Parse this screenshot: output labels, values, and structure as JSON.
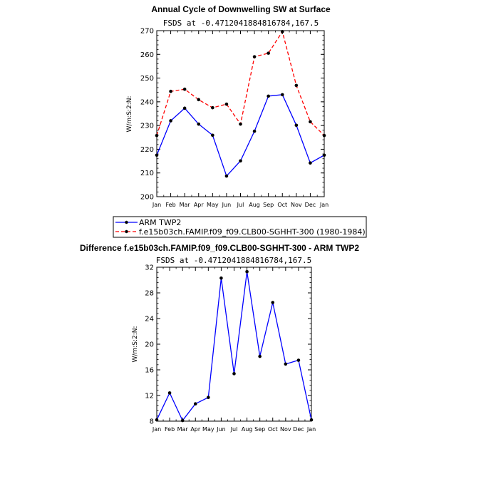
{
  "chart_data": [
    {
      "type": "line",
      "title": "Annual Cycle of Downwelling SW at Surface",
      "subtitle": "FSDS at -0.4712041884816784,167.5",
      "ylabel": "W/m:S:2:N:",
      "xlabel": "",
      "categories": [
        "Jan",
        "Feb",
        "Mar",
        "Apr",
        "May",
        "Jun",
        "Jul",
        "Aug",
        "Sep",
        "Oct",
        "Nov",
        "Dec",
        "Jan"
      ],
      "ylim": [
        200,
        270
      ],
      "yticks": [
        200,
        210,
        220,
        230,
        240,
        250,
        260,
        270
      ],
      "series": [
        {
          "name": "ARM TWP2",
          "color": "#0000ff",
          "dash": "solid",
          "values": [
            217.5,
            232.0,
            237.3,
            230.6,
            225.9,
            208.7,
            215.1,
            227.6,
            242.4,
            243.0,
            230.1,
            214.2,
            217.5
          ]
        },
        {
          "name": "f.e15b03ch.FAMIP.f09_f09.CLB00-SGHHT-300 (1980-1984)",
          "color": "#ff0000",
          "dash": "dashed",
          "values": [
            225.8,
            244.4,
            245.3,
            240.9,
            237.5,
            239.0,
            230.6,
            259.0,
            260.5,
            269.6,
            246.9,
            231.6,
            225.8
          ]
        }
      ],
      "legend": "below"
    },
    {
      "type": "line",
      "title": "Difference f.e15b03ch.FAMIP.f09_f09.CLB00-SGHHT-300 - ARM TWP2",
      "subtitle": "FSDS at -0.4712041884816784,167.5",
      "ylabel": "W/m:S:2:N:",
      "xlabel": "",
      "categories": [
        "Jan",
        "Feb",
        "Mar",
        "Apr",
        "May",
        "Jun",
        "Jul",
        "Aug",
        "Sep",
        "Oct",
        "Nov",
        "Dec",
        "Jan"
      ],
      "ylim": [
        8,
        32
      ],
      "yticks": [
        8,
        12,
        16,
        20,
        24,
        28,
        32
      ],
      "series": [
        {
          "color": "#0000ff",
          "dash": "solid",
          "values": [
            8.2,
            12.4,
            8.1,
            10.7,
            11.7,
            30.3,
            15.4,
            31.3,
            18.1,
            26.5,
            16.9,
            17.5,
            8.2
          ]
        }
      ]
    }
  ]
}
